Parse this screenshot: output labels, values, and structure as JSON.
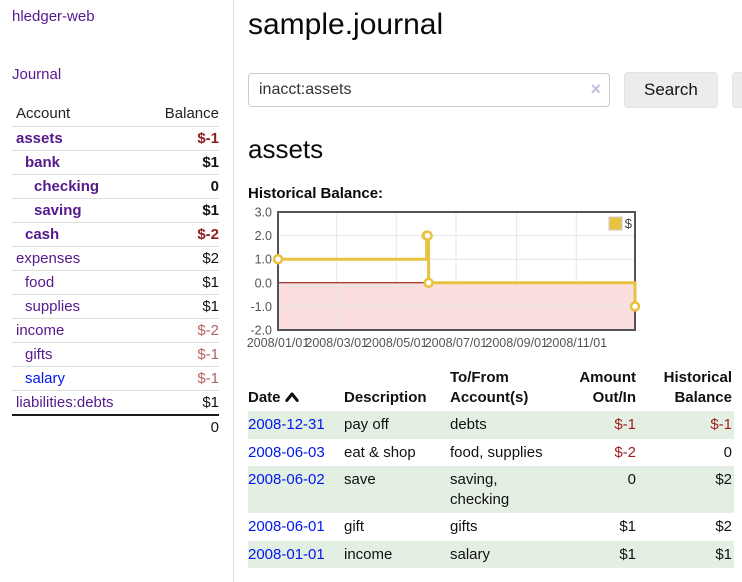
{
  "sidebar": {
    "app_title": "hledger-web",
    "nav": {
      "journal_label": "Journal"
    },
    "accounts_table": {
      "headers": {
        "account": "Account",
        "balance": "Balance"
      },
      "rows": [
        {
          "name": "assets",
          "depth": 1,
          "bold": true,
          "balance": "$-1",
          "balance_style": "neg-strong"
        },
        {
          "name": "bank",
          "depth": 2,
          "bold": true,
          "balance": "$1",
          "balance_style": "pos"
        },
        {
          "name": "checking",
          "depth": 3,
          "bold": true,
          "balance": "0",
          "balance_style": "pos"
        },
        {
          "name": "saving",
          "depth": 3,
          "bold": true,
          "balance": "$1",
          "balance_style": "pos"
        },
        {
          "name": "cash",
          "depth": 2,
          "bold": true,
          "balance": "$-2",
          "balance_style": "neg-strong"
        },
        {
          "name": "expenses",
          "depth": 1,
          "bold": false,
          "balance": "$2",
          "balance_style": "pos"
        },
        {
          "name": "food",
          "depth": 2,
          "bold": false,
          "balance": "$1",
          "balance_style": "pos"
        },
        {
          "name": "supplies",
          "depth": 2,
          "bold": false,
          "balance": "$1",
          "balance_style": "pos"
        },
        {
          "name": "income",
          "depth": 1,
          "bold": false,
          "balance": "$-2",
          "balance_style": "neg-soft"
        },
        {
          "name": "gifts",
          "depth": 2,
          "bold": false,
          "balance": "$-1",
          "balance_style": "neg-soft"
        },
        {
          "name": "salary",
          "depth": 2,
          "bold": false,
          "balance": "$-1",
          "balance_style": "neg-soft",
          "link_color": "blue"
        },
        {
          "name": "liabilities:debts",
          "depth": 1,
          "bold": false,
          "balance": "$1",
          "balance_style": "pos"
        }
      ],
      "total": "0"
    }
  },
  "main": {
    "title": "sample.journal",
    "search": {
      "value": "inacct:assets",
      "clear_icon": "×",
      "button_label": "Search",
      "help_label": "?"
    },
    "account_heading": "assets",
    "chart_label": "Historical Balance:",
    "register_table": {
      "headers": [
        {
          "label": "Date",
          "sortable": true,
          "sort_direction": "asc"
        },
        {
          "label": "Description"
        },
        {
          "label": "To/From\nAccount(s)"
        },
        {
          "label": "Amount\nOut/In",
          "align": "right"
        },
        {
          "label": "Historical\nBalance",
          "align": "right"
        }
      ],
      "rows": [
        {
          "date": "2008-12-31",
          "description": "pay off",
          "accounts": "debts",
          "amount": "$-1",
          "amount_neg": true,
          "balance": "$-1",
          "balance_neg": true
        },
        {
          "date": "2008-06-03",
          "description": "eat & shop",
          "accounts": "food, supplies",
          "amount": "$-2",
          "amount_neg": true,
          "balance": "0",
          "balance_neg": false
        },
        {
          "date": "2008-06-02",
          "description": "save",
          "accounts": "saving, checking",
          "amount": "0",
          "amount_neg": false,
          "balance": "$2",
          "balance_neg": false
        },
        {
          "date": "2008-06-01",
          "description": "gift",
          "accounts": "gifts",
          "amount": "$1",
          "amount_neg": false,
          "balance": "$2",
          "balance_neg": false
        },
        {
          "date": "2008-01-01",
          "description": "income",
          "accounts": "salary",
          "amount": "$1",
          "amount_neg": false,
          "balance": "$1",
          "balance_neg": false
        }
      ]
    }
  },
  "colors": {
    "link_purple": "#551a8b",
    "link_blue": "#0018ee",
    "negative_strong": "#8f1d1d",
    "negative_soft": "#b36262",
    "table_stripe_green": "#e2efe2",
    "chart_line_gold": "#e8c240",
    "chart_negative_fill": "#fbdfdf",
    "chart_zero_line": "#8b0000",
    "chart_border": "#545454"
  },
  "chart_data": {
    "type": "line",
    "title": "Historical Balance:",
    "step": true,
    "series": [
      {
        "name": "$",
        "color": "#e8c240",
        "points": [
          [
            "2008-01-01",
            1.0
          ],
          [
            "2008-06-01",
            2.0
          ],
          [
            "2008-06-02",
            2.0
          ],
          [
            "2008-06-03",
            0.0
          ],
          [
            "2008-12-31",
            -1.0
          ]
        ]
      }
    ],
    "xlim": [
      "2008-01-01",
      "2008-12-31"
    ],
    "ylim": [
      -2.0,
      3.0
    ],
    "yticks": [
      "3.0",
      "2.0",
      "1.0",
      "0.0",
      "-1.0",
      "-2.0"
    ],
    "xticks": [
      "2008/01/01",
      "2008/03/01",
      "2008/05/01",
      "2008/07/01",
      "2008/09/01",
      "2008/11/01"
    ],
    "legend": {
      "label": "$",
      "position": "top-right"
    },
    "grid": true,
    "negative_region_fill": "#fbdfdf",
    "zero_line_color": "#8b0000"
  }
}
